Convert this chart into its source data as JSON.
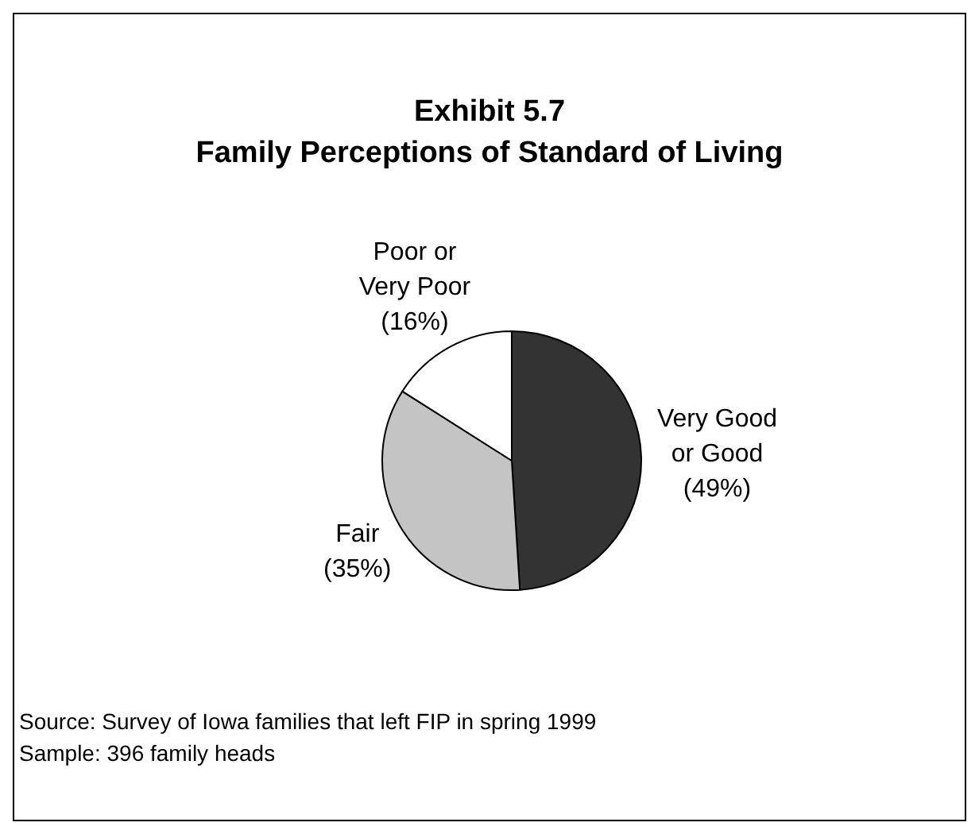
{
  "chart_data": {
    "type": "pie",
    "title": "Exhibit 5.7",
    "subtitle": "Family Perceptions of Standard of Living",
    "categories": [
      "Very Good or Good",
      "Fair",
      "Poor or Very Poor"
    ],
    "values": [
      49,
      35,
      16
    ],
    "colors": [
      "#333333",
      "#c4c4c4",
      "#ffffff"
    ],
    "value_labels": [
      "(49%)",
      "(35%)",
      "(16%)"
    ],
    "legend": false,
    "annotations": [
      "Source: Survey of Iowa families that left FIP in spring 1999",
      "Sample: 396 family heads"
    ]
  }
}
